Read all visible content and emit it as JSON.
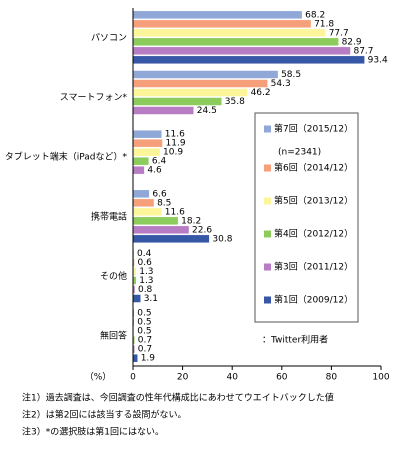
{
  "chart_data": {
    "type": "bar",
    "orientation": "horizontal",
    "x_label": "（%）",
    "categories": [
      "パソコン",
      "スマートフォン*",
      "タブレット端末（iPadなど）*",
      "携帯電話",
      "その他",
      "無回答"
    ],
    "series": [
      {
        "name": "第7回（2015/12）",
        "color": "#8fa8d8",
        "values": [
          68.2,
          58.5,
          11.6,
          6.6,
          0.4,
          0.5
        ]
      },
      {
        "name": "第6回（2014/12）",
        "color": "#f5a07a",
        "values": [
          71.8,
          54.3,
          11.9,
          8.5,
          0.6,
          0.5
        ]
      },
      {
        "name": "第5回（2013/12）",
        "color": "#fdf59a",
        "values": [
          77.7,
          46.2,
          10.9,
          11.6,
          1.3,
          0.5
        ]
      },
      {
        "name": "第4回（2012/12）",
        "color": "#8ccc5c",
        "values": [
          82.9,
          35.8,
          6.4,
          18.2,
          1.3,
          0.7
        ]
      },
      {
        "name": "第3回（2011/12）",
        "color": "#b77cc4",
        "values": [
          87.7,
          24.5,
          4.6,
          22.6,
          0.8,
          0.7
        ]
      },
      {
        "name": "第1回（2009/12）",
        "color": "#3656a6",
        "values": [
          93.4,
          null,
          null,
          30.8,
          3.1,
          1.9
        ]
      }
    ],
    "legend_sample_size": "(n=2341)",
    "legend_note": "：Twitter利用者",
    "xlim": [
      0,
      100
    ],
    "xticks": [
      0,
      20,
      40,
      60,
      80,
      100
    ],
    "notes": [
      "注1）過去調査は、今回調査の性年代構成比にあわせてウエイトバックした値",
      "注2）は第2回には該当する設問がない。",
      "注3）*の選択肢は第1回にはない。"
    ]
  }
}
